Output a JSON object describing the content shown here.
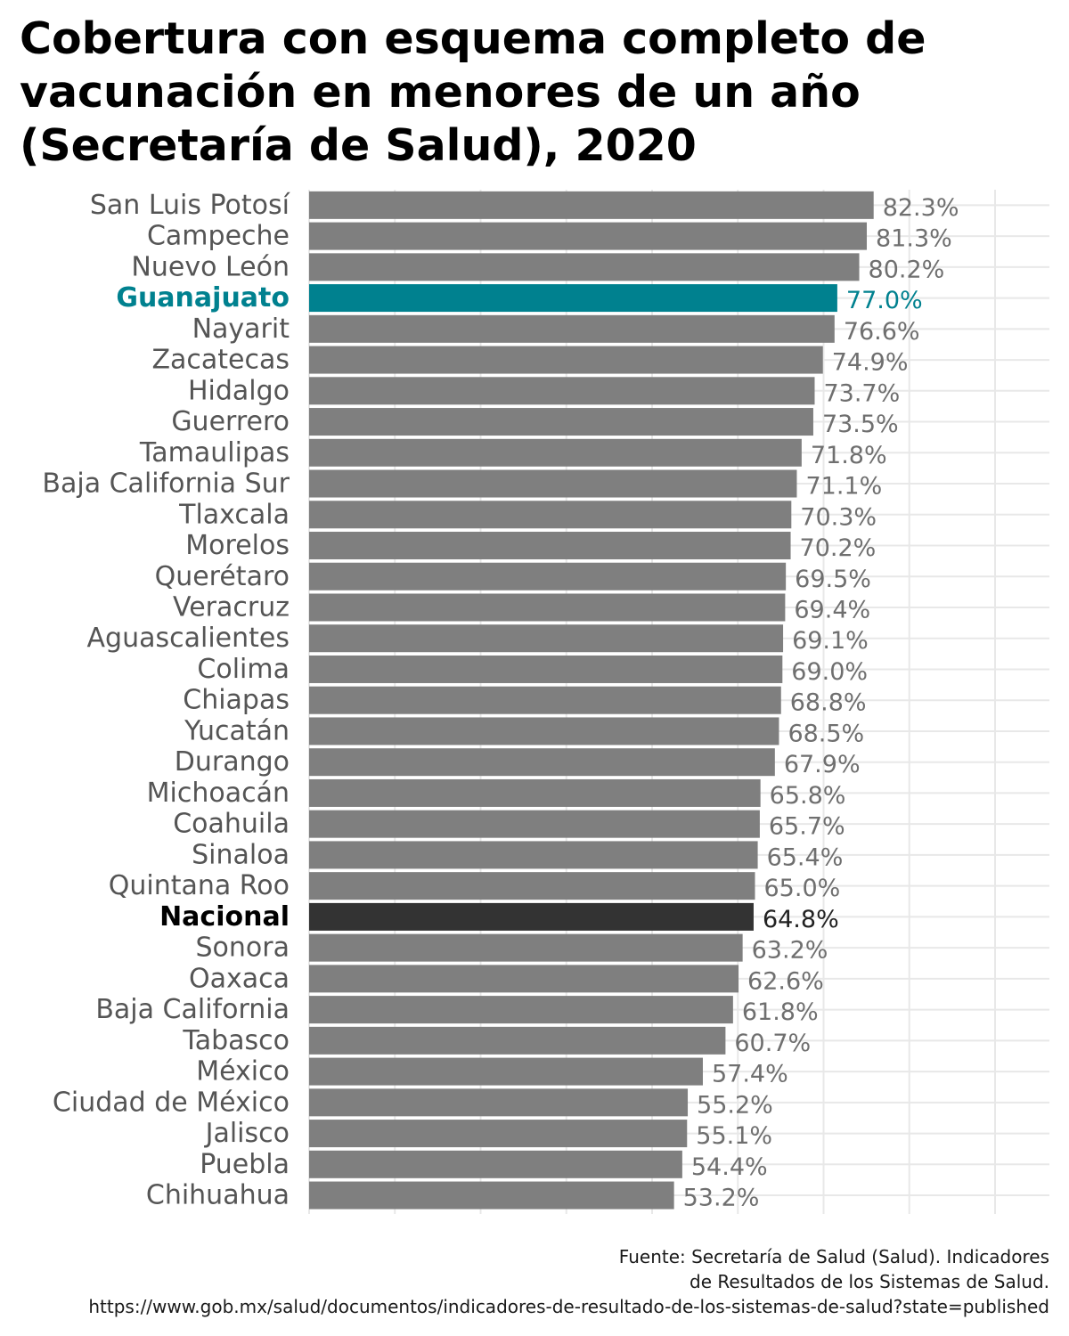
{
  "title": "Cobertura con esquema completo de vacunación en menores de un año (Secretaría de Salud), 2020",
  "source": {
    "line1": "Fuente: Secretaría de Salud (Salud). Indicadores",
    "line2": "de Resultados de los Sistemas de Salud.",
    "line3": "https://www.gob.mx/salud/documentos/indicadores-de-resultado-de-los-sistemas-de-salud?state=published"
  },
  "colors": {
    "default_bar": "#7f7f7f",
    "highlight_bar": "#00818f",
    "national_bar": "#333333",
    "default_label": "#555555",
    "value_label": "#6f6f6f",
    "grid": "#e8e8e8"
  },
  "chart_data": {
    "type": "bar",
    "orientation": "horizontal",
    "title": "Cobertura con esquema completo de vacunación en menores de un año (Secretaría de Salud), 2020",
    "xlim": [
      0,
      100
    ],
    "grid": true,
    "x_tick_labels_visible": false,
    "highlight": "Guanajuato",
    "reference": "Nacional",
    "categories": [
      "San Luis Potosí",
      "Campeche",
      "Nuevo León",
      "Guanajuato",
      "Nayarit",
      "Zacatecas",
      "Hidalgo",
      "Guerrero",
      "Tamaulipas",
      "Baja California Sur",
      "Tlaxcala",
      "Morelos",
      "Querétaro",
      "Veracruz",
      "Aguascalientes",
      "Colima",
      "Chiapas",
      "Yucatán",
      "Durango",
      "Michoacán",
      "Coahuila",
      "Sinaloa",
      "Quintana Roo",
      "Nacional",
      "Sonora",
      "Oaxaca",
      "Baja California",
      "Tabasco",
      "México",
      "Ciudad de México",
      "Jalisco",
      "Puebla",
      "Chihuahua"
    ],
    "values": [
      82.3,
      81.3,
      80.2,
      77.0,
      76.6,
      74.9,
      73.7,
      73.5,
      71.8,
      71.1,
      70.3,
      70.2,
      69.5,
      69.4,
      69.1,
      69.0,
      68.8,
      68.5,
      67.9,
      65.8,
      65.7,
      65.4,
      65.0,
      64.8,
      63.2,
      62.6,
      61.8,
      60.7,
      57.4,
      55.2,
      55.1,
      54.4,
      53.2
    ],
    "value_labels": [
      "82.3%",
      "81.3%",
      "80.2%",
      "77.0%",
      "76.6%",
      "74.9%",
      "73.7%",
      "73.5%",
      "71.8%",
      "71.1%",
      "70.3%",
      "70.2%",
      "69.5%",
      "69.4%",
      "69.1%",
      "69.0%",
      "68.8%",
      "68.5%",
      "67.9%",
      "65.8%",
      "65.7%",
      "65.4%",
      "65.0%",
      "64.8%",
      "63.2%",
      "62.6%",
      "61.8%",
      "60.7%",
      "57.4%",
      "55.2%",
      "55.1%",
      "54.4%",
      "53.2%"
    ]
  }
}
